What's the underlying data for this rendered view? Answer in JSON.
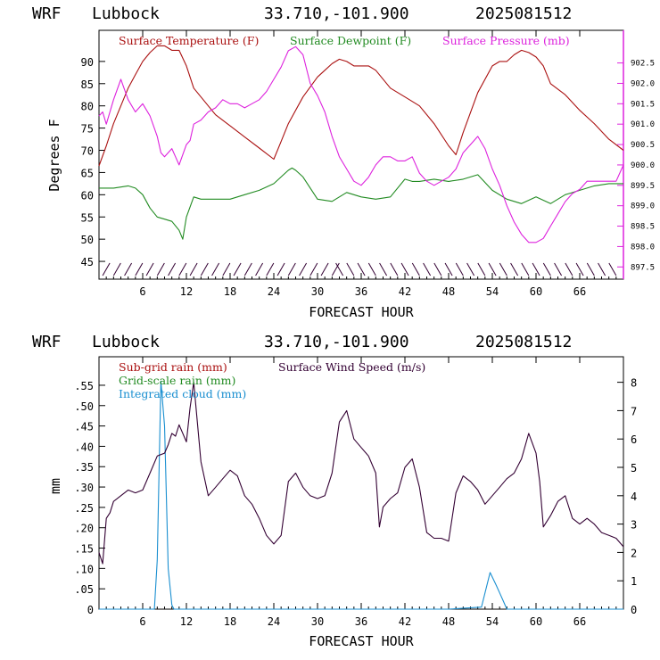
{
  "header": {
    "model": "WRF",
    "site": "Lubbock",
    "coords": "33.710,-101.900",
    "run": "2025081512"
  },
  "colors": {
    "temperature": "#aa1111",
    "dewpoint": "#228b22",
    "pressure": "#dd22dd",
    "subgrid_rain": "#aa1111",
    "grid_rain": "#228b22",
    "cloud": "#1a8fd0",
    "wind": "#330033",
    "barbs": "#330033"
  },
  "chart_data": [
    {
      "type": "line",
      "legend": [
        "Surface Temperature (F)",
        "Surface Dewpoint (F)",
        "Surface Pressure (mb)"
      ],
      "xlabel": "FORECAST HOUR",
      "ylabel": "Degrees F",
      "xlim": [
        0,
        72
      ],
      "ylim": [
        41,
        97
      ],
      "y2lim": [
        897.2,
        903.3
      ],
      "x_ticks": [
        "6",
        "12",
        "18",
        "24",
        "30",
        "36",
        "42",
        "48",
        "54",
        "60",
        "66"
      ],
      "y_ticks": [
        "45",
        "50",
        "55",
        "60",
        "65",
        "70",
        "75",
        "80",
        "85",
        "90"
      ],
      "y2_ticks": [
        "897.5",
        "898.0",
        "898.5",
        "899.0",
        "899.5",
        "900.0",
        "900.5",
        "901.0",
        "901.5",
        "902.0",
        "902.5"
      ],
      "series": [
        {
          "name": "Surface Temperature (F)",
          "axis": "left",
          "x": [
            0,
            1,
            2,
            3,
            4,
            5,
            6,
            7,
            8,
            9,
            10,
            11,
            12,
            13,
            14,
            15,
            16,
            18,
            20,
            22,
            24,
            25,
            26,
            28,
            30,
            31,
            32,
            33,
            34,
            35,
            36,
            37,
            38,
            40,
            42,
            44,
            46,
            48,
            49,
            50,
            52,
            54,
            55,
            56,
            57,
            58,
            59,
            60,
            61,
            62,
            64,
            66,
            68,
            70,
            72
          ],
          "values": [
            66.5,
            71,
            76,
            80,
            84,
            87,
            90,
            92,
            93.5,
            93.5,
            92.5,
            92.5,
            89,
            84,
            82,
            80,
            78,
            75.5,
            73,
            70.5,
            68,
            72,
            76,
            82,
            86.5,
            88,
            89.5,
            90.5,
            90,
            89,
            89,
            89,
            88,
            84,
            82,
            80,
            76,
            71,
            69,
            74,
            83,
            89,
            90,
            90,
            91.5,
            92.5,
            92,
            91,
            89,
            85,
            82.5,
            79,
            76,
            72.5,
            70
          ]
        },
        {
          "name": "Surface Dewpoint (F)",
          "axis": "left",
          "x": [
            0,
            2,
            4,
            5,
            6,
            7,
            8,
            9,
            10,
            11,
            11.5,
            12,
            13,
            14,
            16,
            18,
            20,
            22,
            24,
            26,
            26.5,
            27,
            28,
            30,
            32,
            34,
            36,
            38,
            40,
            42,
            43,
            44,
            46,
            48,
            50,
            52,
            54,
            56,
            58,
            60,
            62,
            64,
            66,
            68,
            70,
            72
          ],
          "values": [
            61.5,
            61.5,
            62,
            61.5,
            60,
            57,
            55,
            54.5,
            54,
            52,
            50,
            55,
            59.5,
            59,
            59,
            59,
            60,
            61,
            62.5,
            65.5,
            66,
            65.5,
            64,
            59,
            58.5,
            60.5,
            59.5,
            59,
            59.5,
            63.5,
            63,
            63,
            63.5,
            63,
            63.5,
            64.5,
            61,
            59,
            58,
            59.5,
            58,
            60,
            61,
            62,
            62.5,
            62.5
          ]
        },
        {
          "name": "Surface Pressure (mb)",
          "axis": "right",
          "x": [
            0,
            0.5,
            1,
            2,
            3,
            4,
            5,
            6,
            7,
            8,
            8.5,
            9,
            10,
            10.5,
            11,
            12,
            12.5,
            13,
            14,
            15,
            16,
            17,
            18,
            19,
            20,
            21,
            22,
            23,
            24,
            25,
            26,
            27,
            28,
            29,
            30,
            31,
            32,
            33,
            34,
            35,
            36,
            37,
            38,
            39,
            40,
            41,
            42,
            43,
            44,
            45,
            46,
            47,
            48,
            49,
            50,
            51,
            52,
            53,
            54,
            55,
            56,
            57,
            58,
            59,
            60,
            61,
            62,
            63,
            64,
            65,
            66,
            67,
            68,
            69,
            70,
            71,
            72
          ],
          "values": [
            901.2,
            901.3,
            901.0,
            901.6,
            902.1,
            901.6,
            901.3,
            901.5,
            901.2,
            900.7,
            900.3,
            900.2,
            900.4,
            900.2,
            900.0,
            900.5,
            900.6,
            901.0,
            901.1,
            901.3,
            901.4,
            901.6,
            901.5,
            901.5,
            901.4,
            901.5,
            901.6,
            901.8,
            902.1,
            902.4,
            902.8,
            902.9,
            902.7,
            902.0,
            901.7,
            901.3,
            900.7,
            900.2,
            899.9,
            899.6,
            899.5,
            899.7,
            900.0,
            900.2,
            900.2,
            900.1,
            900.1,
            900.2,
            899.8,
            899.6,
            899.5,
            899.6,
            899.7,
            899.9,
            900.3,
            900.5,
            900.7,
            900.4,
            899.9,
            899.5,
            899.0,
            898.6,
            898.3,
            898.1,
            898.1,
            898.2,
            898.5,
            898.8,
            899.1,
            899.3,
            899.4,
            899.6,
            899.6,
            899.6,
            899.6,
            899.6,
            900.0
          ]
        }
      ],
      "wind_barbs": true
    },
    {
      "type": "line",
      "legend": [
        "Sub-grid rain (mm)",
        "Grid-scale rain (mm)",
        "Integrated cloud (mm)",
        "Surface Wind Speed (m/s)"
      ],
      "xlabel": "FORECAST HOUR",
      "ylabel": "mm",
      "xlim": [
        0,
        72
      ],
      "ylim": [
        0,
        0.62
      ],
      "y2lim": [
        0,
        8.9
      ],
      "x_ticks": [
        "6",
        "12",
        "18",
        "24",
        "30",
        "36",
        "42",
        "48",
        "54",
        "60",
        "66"
      ],
      "y_ticks": [
        "0",
        ".05",
        ".10",
        ".15",
        ".20",
        ".25",
        ".30",
        ".35",
        ".40",
        ".45",
        ".50",
        ".55"
      ],
      "y2_ticks": [
        "0",
        "1",
        "2",
        "3",
        "4",
        "5",
        "6",
        "7",
        "8"
      ],
      "series": [
        {
          "name": "Integrated cloud (mm)",
          "axis": "left",
          "x": [
            0,
            7.6,
            8,
            8.5,
            9.0,
            9.5,
            10.0,
            10.3,
            11,
            48,
            52.5,
            53,
            53.7,
            54.5,
            55,
            55.5,
            56,
            72
          ],
          "values": [
            0,
            0,
            0.12,
            0.56,
            0.45,
            0.1,
            0.01,
            0,
            0,
            0,
            0.005,
            0.04,
            0.09,
            0.06,
            0.04,
            0.02,
            0,
            0
          ]
        },
        {
          "name": "Surface Wind Speed (m/s)",
          "axis": "right",
          "x": [
            0,
            0.5,
            1,
            1.5,
            2,
            3,
            4,
            5,
            6,
            7,
            8,
            9,
            9.5,
            10,
            10.5,
            11,
            12,
            12.5,
            13,
            14,
            15,
            16,
            17,
            18,
            19,
            20,
            21,
            22,
            23,
            24,
            25,
            26,
            27,
            28,
            29,
            30,
            31,
            32,
            33,
            34,
            35,
            36,
            37,
            38,
            38.5,
            39,
            40,
            41,
            42,
            43,
            44,
            45,
            46,
            47,
            48,
            49,
            50,
            51,
            52,
            53,
            54,
            55,
            56,
            57,
            58,
            59,
            60,
            60.5,
            61,
            62,
            63,
            64,
            65,
            66,
            67,
            68,
            69,
            70,
            71,
            72
          ],
          "values": [
            2.0,
            1.6,
            3.2,
            3.4,
            3.8,
            4.0,
            4.2,
            4.1,
            4.2,
            4.8,
            5.4,
            5.5,
            5.8,
            6.2,
            6.1,
            6.5,
            5.9,
            7.1,
            8.0,
            5.2,
            4.0,
            4.3,
            4.6,
            4.9,
            4.7,
            4.0,
            3.7,
            3.2,
            2.6,
            2.3,
            2.6,
            4.5,
            4.8,
            4.3,
            4.0,
            3.9,
            4.0,
            4.8,
            6.6,
            7.0,
            6.0,
            5.7,
            5.4,
            4.8,
            2.9,
            3.6,
            3.9,
            4.1,
            5.0,
            5.3,
            4.3,
            2.7,
            2.5,
            2.5,
            2.4,
            4.1,
            4.7,
            4.5,
            4.2,
            3.7,
            4.0,
            4.3,
            4.6,
            4.8,
            5.3,
            6.2,
            5.5,
            4.5,
            2.9,
            3.3,
            3.8,
            4.0,
            3.2,
            3.0,
            3.2,
            3.0,
            2.7,
            2.6,
            2.5,
            2.2
          ]
        }
      ]
    }
  ]
}
